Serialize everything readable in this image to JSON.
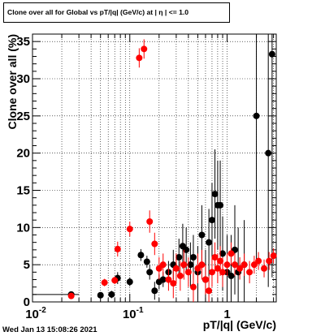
{
  "chart_data": {
    "type": "scatter",
    "title": "Clone  over all for Global vs pT/|q| (GeV/c) at | η | <= 1.0",
    "xlabel": "pT/|q| (GeV/c)",
    "ylabel": "Clone  over all (%)",
    "xscale": "log",
    "xlim": [
      0.01,
      3.2
    ],
    "ylim": [
      0,
      36
    ],
    "xtick_labels": [
      "10^-2",
      "10^-1",
      "1"
    ],
    "ytick_labels": [
      "0",
      "5",
      "10",
      "15",
      "20",
      "25",
      "30",
      "35"
    ],
    "grid": true,
    "series": [
      {
        "color": "#000000",
        "points": [
          {
            "x": 0.025,
            "y": 1.0,
            "err": 0.4,
            "xerr_lo": 0.015,
            "xerr_hi": 0.005
          },
          {
            "x": 0.05,
            "y": 0.9,
            "err": 0.4
          },
          {
            "x": 0.065,
            "y": 1.0,
            "err": 0.5
          },
          {
            "x": 0.075,
            "y": 3.2,
            "err": 0.8
          },
          {
            "x": 0.1,
            "y": 2.7,
            "err": 0.6
          },
          {
            "x": 0.13,
            "y": 6.3,
            "err": 0.8
          },
          {
            "x": 0.15,
            "y": 5.4,
            "err": 0.8
          },
          {
            "x": 0.16,
            "y": 4.0,
            "err": 1.0
          },
          {
            "x": 0.18,
            "y": 1.5,
            "err": 1.2
          },
          {
            "x": 0.2,
            "y": 2.7,
            "err": 1.0
          },
          {
            "x": 0.22,
            "y": 3.0,
            "err": 1.0
          },
          {
            "x": 0.25,
            "y": 4.0,
            "err": 1.5
          },
          {
            "x": 0.28,
            "y": 5.0,
            "err": 2.0
          },
          {
            "x": 0.32,
            "y": 6.0,
            "err": 2.5
          },
          {
            "x": 0.35,
            "y": 7.5,
            "err": 3.0
          },
          {
            "x": 0.38,
            "y": 7.0,
            "err": 3.0
          },
          {
            "x": 0.42,
            "y": 5.0,
            "err": 3.0
          },
          {
            "x": 0.45,
            "y": 6.0,
            "err": 3.0
          },
          {
            "x": 0.5,
            "y": 4.0,
            "err": 3.5
          },
          {
            "x": 0.55,
            "y": 9.0,
            "err": 4.0
          },
          {
            "x": 0.6,
            "y": 3.0,
            "err": 4.0
          },
          {
            "x": 0.65,
            "y": 8.0,
            "err": 4.5
          },
          {
            "x": 0.7,
            "y": 11.0,
            "err": 5.0
          },
          {
            "x": 0.75,
            "y": 14.5,
            "err": 6.0
          },
          {
            "x": 0.8,
            "y": 13.0,
            "err": 6.0
          },
          {
            "x": 0.85,
            "y": 13.0,
            "err": 6.0
          },
          {
            "x": 0.9,
            "y": 6.5,
            "err": 5.0
          },
          {
            "x": 1.0,
            "y": 4.0,
            "err": 5.0
          },
          {
            "x": 1.1,
            "y": 3.5,
            "err": 5.5
          },
          {
            "x": 1.2,
            "y": 7.0,
            "err": 6.0
          },
          {
            "x": 1.3,
            "y": 4.0,
            "err": 6.0
          },
          {
            "x": 1.5,
            "y": 5.0,
            "err": 6.0
          },
          {
            "x": 2.0,
            "y": 25.0,
            "err": 20.0
          },
          {
            "x": 2.65,
            "y": 20.0,
            "err": 18.0
          },
          {
            "x": 2.9,
            "y": 33.3,
            "err": 30.0
          }
        ]
      },
      {
        "color": "#ff0000",
        "points": [
          {
            "x": 0.025,
            "y": 0.8,
            "err": 0.4
          },
          {
            "x": 0.055,
            "y": 2.6,
            "err": 0.5
          },
          {
            "x": 0.07,
            "y": 2.9,
            "err": 0.5
          },
          {
            "x": 0.075,
            "y": 7.1,
            "err": 1.0
          },
          {
            "x": 0.1,
            "y": 9.8,
            "err": 1.0
          },
          {
            "x": 0.125,
            "y": 32.8,
            "err": 1.3
          },
          {
            "x": 0.14,
            "y": 34.0,
            "err": 1.3
          },
          {
            "x": 0.16,
            "y": 10.8,
            "err": 1.5
          },
          {
            "x": 0.18,
            "y": 7.8,
            "err": 1.5
          },
          {
            "x": 0.2,
            "y": 4.5,
            "err": 1.5
          },
          {
            "x": 0.22,
            "y": 5.0,
            "err": 1.5
          },
          {
            "x": 0.25,
            "y": 3.0,
            "err": 1.5
          },
          {
            "x": 0.28,
            "y": 2.5,
            "err": 2.0
          },
          {
            "x": 0.3,
            "y": 4.5,
            "err": 2.0
          },
          {
            "x": 0.33,
            "y": 3.5,
            "err": 2.0
          },
          {
            "x": 0.36,
            "y": 5.0,
            "err": 2.0
          },
          {
            "x": 0.4,
            "y": 4.0,
            "err": 2.0
          },
          {
            "x": 0.45,
            "y": 2.0,
            "err": 2.0
          },
          {
            "x": 0.5,
            "y": 4.5,
            "err": 2.0
          },
          {
            "x": 0.55,
            "y": 5.0,
            "err": 2.0
          },
          {
            "x": 0.6,
            "y": 3.0,
            "err": 2.0
          },
          {
            "x": 0.65,
            "y": 1.5,
            "err": 2.0
          },
          {
            "x": 0.7,
            "y": 4.0,
            "err": 2.0
          },
          {
            "x": 0.75,
            "y": 6.0,
            "err": 2.0
          },
          {
            "x": 0.8,
            "y": 4.5,
            "err": 2.0
          },
          {
            "x": 0.85,
            "y": 5.5,
            "err": 2.0
          },
          {
            "x": 0.9,
            "y": 4.0,
            "err": 2.0
          },
          {
            "x": 1.0,
            "y": 5.0,
            "err": 1.5
          },
          {
            "x": 1.1,
            "y": 6.5,
            "err": 1.5
          },
          {
            "x": 1.2,
            "y": 5.0,
            "err": 1.5
          },
          {
            "x": 1.35,
            "y": 4.5,
            "err": 1.5
          },
          {
            "x": 1.5,
            "y": 5.0,
            "err": 1.5
          },
          {
            "x": 1.7,
            "y": 4.0,
            "err": 1.5
          },
          {
            "x": 1.9,
            "y": 5.0,
            "err": 1.2
          },
          {
            "x": 2.1,
            "y": 5.5,
            "err": 1.2
          },
          {
            "x": 2.4,
            "y": 4.5,
            "err": 1.2
          },
          {
            "x": 2.7,
            "y": 5.5,
            "err": 1.2
          },
          {
            "x": 3.0,
            "y": 6.2,
            "err": 1.0
          }
        ]
      }
    ]
  },
  "footer": {
    "timestamp": "Wed Jan 13 15:08:26 2021"
  }
}
